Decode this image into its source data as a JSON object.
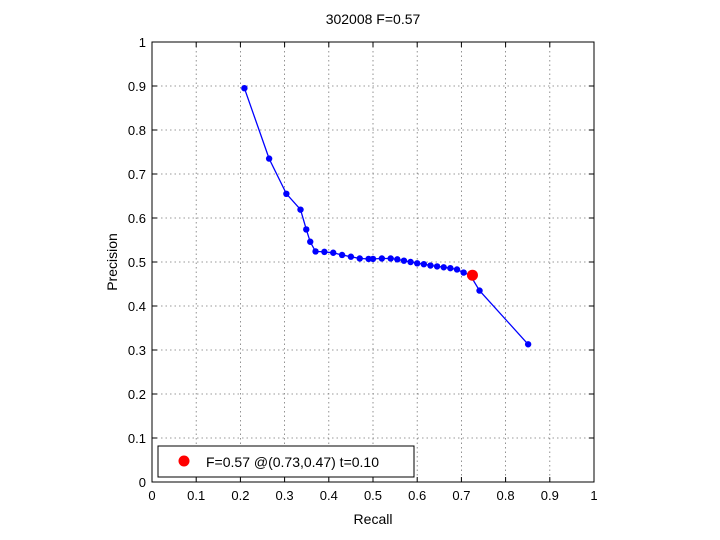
{
  "chart_data": {
    "type": "line",
    "title": "302008 F=0.57",
    "xlabel": "Recall",
    "ylabel": "Precision",
    "xlim": [
      0,
      1
    ],
    "ylim": [
      0,
      1
    ],
    "xticks": [
      "0",
      "0.1",
      "0.2",
      "0.3",
      "0.4",
      "0.5",
      "0.6",
      "0.7",
      "0.8",
      "0.9",
      "1"
    ],
    "yticks": [
      "0",
      "0.1",
      "0.2",
      "0.3",
      "0.4",
      "0.5",
      "0.6",
      "0.7",
      "0.8",
      "0.9",
      "1"
    ],
    "grid": true,
    "series": [
      {
        "color": "#0000ff",
        "marker": "dot",
        "x": [
          0.209,
          0.265,
          0.304,
          0.336,
          0.349,
          0.358,
          0.37,
          0.39,
          0.41,
          0.43,
          0.45,
          0.47,
          0.49,
          0.5,
          0.52,
          0.54,
          0.555,
          0.57,
          0.585,
          0.6,
          0.615,
          0.63,
          0.645,
          0.66,
          0.675,
          0.69,
          0.705,
          0.72,
          0.741,
          0.851
        ],
        "y": [
          0.895,
          0.735,
          0.655,
          0.619,
          0.574,
          0.546,
          0.524,
          0.523,
          0.521,
          0.516,
          0.512,
          0.508,
          0.507,
          0.507,
          0.508,
          0.508,
          0.506,
          0.503,
          0.5,
          0.497,
          0.495,
          0.492,
          0.49,
          0.488,
          0.486,
          0.483,
          0.476,
          0.47,
          0.435,
          0.313
        ]
      }
    ],
    "highlight": {
      "x": 0.725,
      "y": 0.47,
      "color": "#ff0000"
    },
    "legend": {
      "position": "bottom-left",
      "entries": [
        "F=0.57 @(0.73,0.47) t=0.10"
      ]
    }
  }
}
